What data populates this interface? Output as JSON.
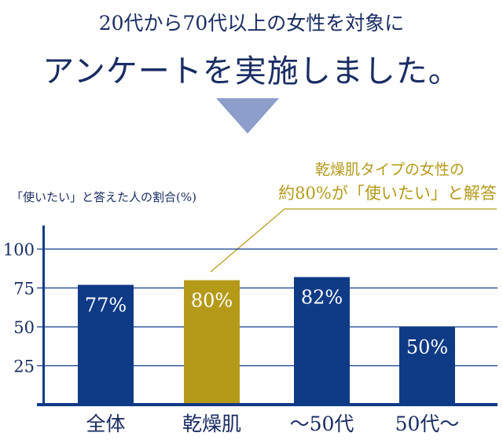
{
  "header": {
    "line1": "20代から70代以上の女性を対象に",
    "line2": "アンケートを実施しました。",
    "arrow_icon": "down-triangle"
  },
  "callout": {
    "line1": "乾燥肌タイプの女性の",
    "line2": "約80%が「使いたい」と解答"
  },
  "colors": {
    "navy": "#0f3a86",
    "gold": "#b59a1a",
    "arrow": "#8c9ec9",
    "text": "#1a2d63"
  },
  "chart_data": {
    "type": "bar",
    "ylabel": "「使いたい」と答えた人の割合(%)",
    "categories": [
      "全体",
      "乾燥肌",
      "～50代",
      "50代～"
    ],
    "values": [
      77,
      80,
      82,
      50
    ],
    "data_labels": [
      "77%",
      "80%",
      "82%",
      "50%"
    ],
    "highlight_index": 1,
    "yticks": [
      25,
      50,
      75,
      100
    ],
    "ylim": [
      0,
      100
    ],
    "grid": true
  }
}
